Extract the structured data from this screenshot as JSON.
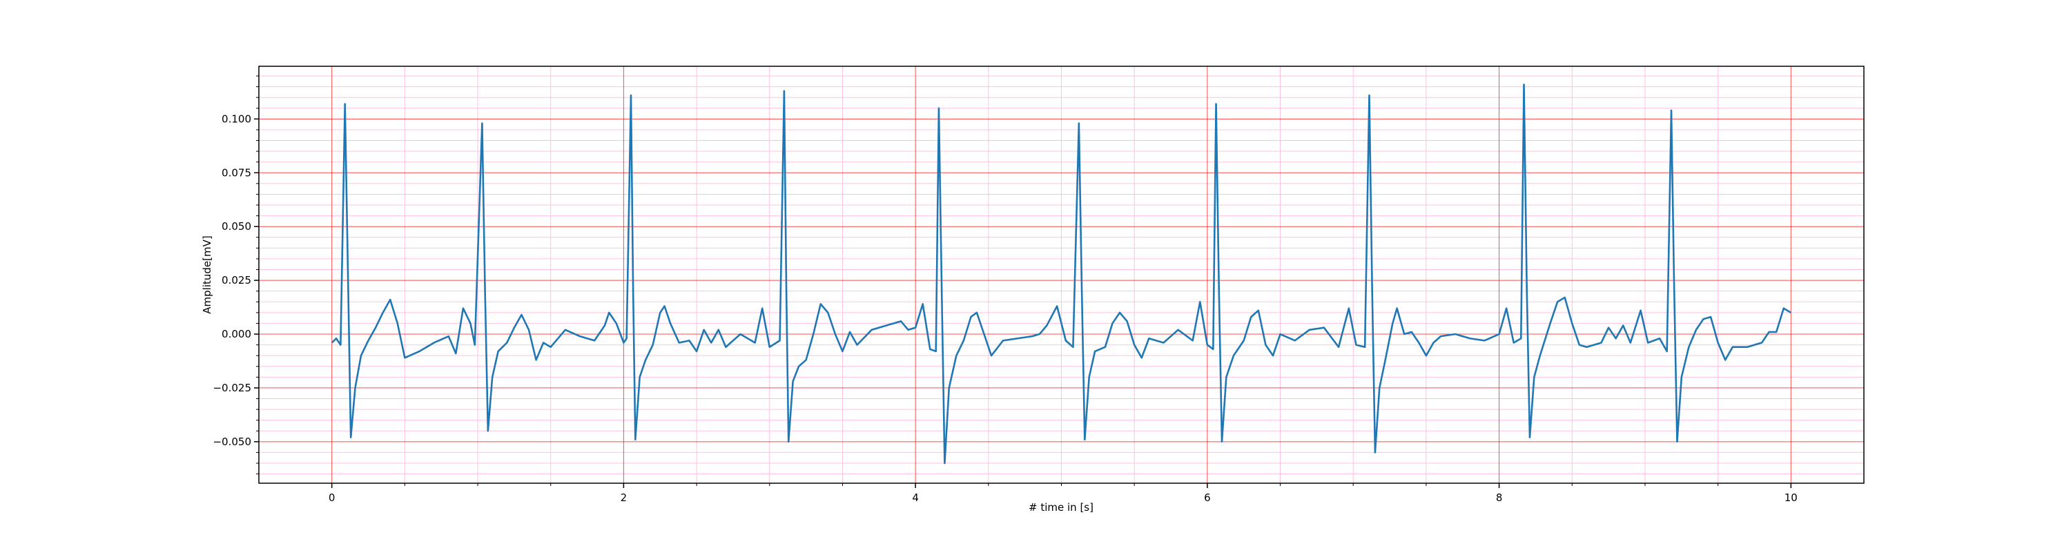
{
  "chart_data": {
    "type": "line",
    "xlabel": "# time in [s]",
    "ylabel": "Amplitude[mV]",
    "x": [
      0,
      0.03,
      0.06,
      0.09,
      0.11,
      0.13,
      0.16,
      0.2,
      0.25,
      0.3,
      0.35,
      0.4,
      0.45,
      0.5,
      0.6,
      0.7,
      0.8,
      0.85,
      0.9,
      0.95,
      0.98,
      1.03,
      1.05,
      1.07,
      1.1,
      1.14,
      1.2,
      1.25,
      1.3,
      1.35,
      1.4,
      1.45,
      1.5,
      1.6,
      1.7,
      1.8,
      1.87,
      1.9,
      1.95,
      2.0,
      2.02,
      2.05,
      2.065,
      2.08,
      2.11,
      2.15,
      2.2,
      2.25,
      2.28,
      2.32,
      2.38,
      2.45,
      2.5,
      2.55,
      2.6,
      2.65,
      2.7,
      2.8,
      2.9,
      2.95,
      3.0,
      3.07,
      3.1,
      3.115,
      3.13,
      3.16,
      3.2,
      3.25,
      3.3,
      3.35,
      3.4,
      3.45,
      3.5,
      3.55,
      3.6,
      3.7,
      3.8,
      3.9,
      3.95,
      4.0,
      4.05,
      4.1,
      4.14,
      4.16,
      4.18,
      4.2,
      4.23,
      4.28,
      4.33,
      4.38,
      4.42,
      4.47,
      4.52,
      4.6,
      4.7,
      4.8,
      4.85,
      4.9,
      4.97,
      5.03,
      5.08,
      5.12,
      5.14,
      5.16,
      5.19,
      5.23,
      5.3,
      5.35,
      5.4,
      5.45,
      5.5,
      5.55,
      5.6,
      5.7,
      5.8,
      5.9,
      5.95,
      6.0,
      6.04,
      6.06,
      6.08,
      6.1,
      6.13,
      6.18,
      6.25,
      6.3,
      6.35,
      6.4,
      6.45,
      6.5,
      6.6,
      6.7,
      6.8,
      6.9,
      6.97,
      7.02,
      7.08,
      7.11,
      7.13,
      7.15,
      7.18,
      7.22,
      7.27,
      7.3,
      7.35,
      7.4,
      7.45,
      7.5,
      7.55,
      7.6,
      7.7,
      7.8,
      7.9,
      8.0,
      8.05,
      8.1,
      8.15,
      8.17,
      8.19,
      8.21,
      8.24,
      8.28,
      8.35,
      8.4,
      8.45,
      8.5,
      8.55,
      8.6,
      8.7,
      8.75,
      8.8,
      8.85,
      8.9,
      8.97,
      9.02,
      9.1,
      9.15,
      9.18,
      9.2,
      9.22,
      9.25,
      9.3,
      9.35,
      9.4,
      9.45,
      9.5,
      9.55,
      9.6,
      9.7,
      9.8,
      9.85,
      9.9,
      9.95,
      10.0
    ],
    "series": [
      {
        "color": "#1f77b4",
        "values": [
          -0.004,
          -0.002,
          -0.005,
          0.107,
          0.03,
          -0.048,
          -0.025,
          -0.01,
          -0.003,
          0.003,
          0.01,
          0.016,
          0.005,
          -0.011,
          -0.008,
          -0.004,
          -0.001,
          -0.009,
          0.012,
          0.005,
          -0.005,
          0.098,
          0.02,
          -0.045,
          -0.02,
          -0.008,
          -0.004,
          0.003,
          0.009,
          0.002,
          -0.012,
          -0.004,
          -0.006,
          0.002,
          -0.001,
          -0.003,
          0.004,
          0.01,
          0.005,
          -0.004,
          -0.002,
          0.111,
          0.02,
          -0.049,
          -0.02,
          -0.012,
          -0.005,
          0.01,
          0.013,
          0.005,
          -0.004,
          -0.003,
          -0.008,
          0.002,
          -0.004,
          0.002,
          -0.006,
          0.0,
          -0.004,
          0.012,
          -0.006,
          -0.003,
          0.113,
          0.02,
          -0.05,
          -0.022,
          -0.015,
          -0.012,
          0.0,
          0.014,
          0.01,
          0.0,
          -0.008,
          0.001,
          -0.005,
          0.002,
          0.004,
          0.006,
          0.002,
          0.003,
          0.014,
          -0.007,
          -0.008,
          0.105,
          0.02,
          -0.06,
          -0.025,
          -0.01,
          -0.003,
          0.008,
          0.01,
          0.0,
          -0.01,
          -0.003,
          -0.002,
          -0.001,
          0.0,
          0.004,
          0.013,
          -0.003,
          -0.006,
          0.098,
          0.02,
          -0.049,
          -0.02,
          -0.008,
          -0.006,
          0.005,
          0.01,
          0.006,
          -0.005,
          -0.011,
          -0.002,
          -0.004,
          0.002,
          -0.003,
          0.015,
          -0.005,
          -0.007,
          0.107,
          0.02,
          -0.05,
          -0.02,
          -0.01,
          -0.003,
          0.008,
          0.011,
          -0.005,
          -0.01,
          0.0,
          -0.003,
          0.002,
          0.003,
          -0.006,
          0.012,
          -0.005,
          -0.006,
          0.111,
          0.02,
          -0.055,
          -0.025,
          -0.012,
          0.005,
          0.012,
          0.0,
          0.001,
          -0.004,
          -0.01,
          -0.004,
          -0.001,
          0.0,
          -0.002,
          -0.003,
          0.0,
          0.012,
          -0.004,
          -0.002,
          0.116,
          0.02,
          -0.048,
          -0.02,
          -0.01,
          0.005,
          0.015,
          0.017,
          0.005,
          -0.005,
          -0.006,
          -0.004,
          0.003,
          -0.002,
          0.004,
          -0.004,
          0.011,
          -0.004,
          -0.002,
          -0.008,
          0.104,
          0.02,
          -0.05,
          -0.02,
          -0.006,
          0.002,
          0.007,
          0.008,
          -0.004,
          -0.012,
          -0.006,
          -0.006,
          -0.004,
          0.001,
          0.001,
          0.012,
          0.01
        ]
      }
    ],
    "xlim": [
      -0.5,
      10.5
    ],
    "xticks": [
      0,
      2,
      4,
      6,
      8,
      10
    ],
    "xminorticks": [
      0.5,
      1,
      1.5,
      2.5,
      3,
      3.5,
      4.5,
      5,
      5.5,
      6.5,
      7,
      7.5,
      8.5,
      9,
      9.5
    ],
    "ylim": [
      -0.0693,
      0.1245
    ],
    "yticks": [
      {
        "value": -0.05,
        "label": "−0.050"
      },
      {
        "value": -0.025,
        "label": "−0.025"
      },
      {
        "value": 0,
        "label": "0.000"
      },
      {
        "value": 0.025,
        "label": "0.025"
      },
      {
        "value": 0.05,
        "label": "0.050"
      },
      {
        "value": 0.075,
        "label": "0.075"
      },
      {
        "value": 0.1,
        "label": "0.100"
      }
    ],
    "yminorticks": [
      -0.065,
      -0.06,
      -0.055,
      -0.045,
      -0.04,
      -0.035,
      -0.03,
      -0.02,
      -0.015,
      -0.01,
      -0.005,
      0.005,
      0.01,
      0.015,
      0.02,
      0.03,
      0.035,
      0.04,
      0.045,
      0.055,
      0.06,
      0.065,
      0.07,
      0.08,
      0.085,
      0.09,
      0.095,
      0.105,
      0.11,
      0.115,
      0.12
    ],
    "grid": true,
    "grid_color": "#ff0000",
    "minor_grid_color": "#ffc0e0"
  }
}
